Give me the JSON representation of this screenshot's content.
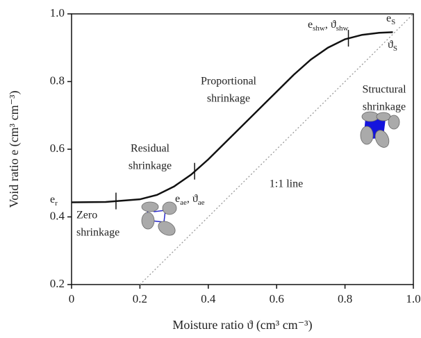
{
  "chart_data": {
    "type": "line",
    "x_label": "Moisture ratio ϑ (cm³ cm⁻³)",
    "y_label": "Void ratio e (cm³ cm⁻³)",
    "xlim": [
      0,
      1
    ],
    "ylim": [
      0.2,
      1
    ],
    "xticks": [
      0,
      0.2,
      0.4,
      0.6,
      0.8,
      {
        "value": 1,
        "label": "1.0"
      }
    ],
    "yticks": [
      0.2,
      0.4,
      0.6,
      0.8,
      {
        "value": 1,
        "label": "1.0"
      }
    ],
    "series": [
      {
        "color": "#111111",
        "style": "solid",
        "x": [
          0,
          0.1,
          0.2,
          0.25,
          0.3,
          0.35,
          0.4,
          0.45,
          0.5,
          0.55,
          0.6,
          0.65,
          0.7,
          0.75,
          0.8,
          0.85,
          0.9,
          0.94
        ],
        "values": [
          0.443,
          0.444,
          0.452,
          0.465,
          0.49,
          0.525,
          0.57,
          0.62,
          0.67,
          0.72,
          0.77,
          0.82,
          0.865,
          0.9,
          0.925,
          0.938,
          0.944,
          0.946
        ]
      },
      {
        "color": "#999999",
        "style": "dotted",
        "x": [
          0.2,
          1
        ],
        "values": [
          0.2,
          1
        ]
      }
    ],
    "markers": [
      {
        "x": 0.13,
        "y": 0.447
      },
      {
        "x": 0.36,
        "y": 0.535
      },
      {
        "x": 0.81,
        "y": 0.928
      }
    ],
    "annotations": [
      {
        "lines": [
          "Proportional",
          "shrinkage"
        ]
      },
      {
        "lines": [
          "Residual",
          "shrinkage"
        ]
      },
      {
        "lines": [
          "Structural",
          "shrinkage"
        ]
      },
      {
        "lines": [
          "Zero",
          "shrinkage"
        ]
      },
      {
        "lines": [
          "1:1 line"
        ]
      },
      {
        "parts": [
          {
            "text": "e"
          },
          {
            "text": "r",
            "sub": true
          }
        ]
      },
      {
        "parts": [
          {
            "text": "e"
          },
          {
            "text": "ae",
            "sub": true
          },
          {
            "text": ", ϑ"
          },
          {
            "text": "ae",
            "sub": true
          }
        ]
      },
      {
        "parts": [
          {
            "text": "e"
          },
          {
            "text": "shw",
            "sub": true
          },
          {
            "text": ", ϑ"
          },
          {
            "text": "shw",
            "sub": true
          }
        ]
      },
      {
        "parts": [
          {
            "text": "e"
          },
          {
            "text": "S",
            "sub": true
          }
        ]
      },
      {
        "parts": [
          {
            "text": "ϑ"
          },
          {
            "text": "S",
            "sub": true
          }
        ]
      }
    ]
  }
}
